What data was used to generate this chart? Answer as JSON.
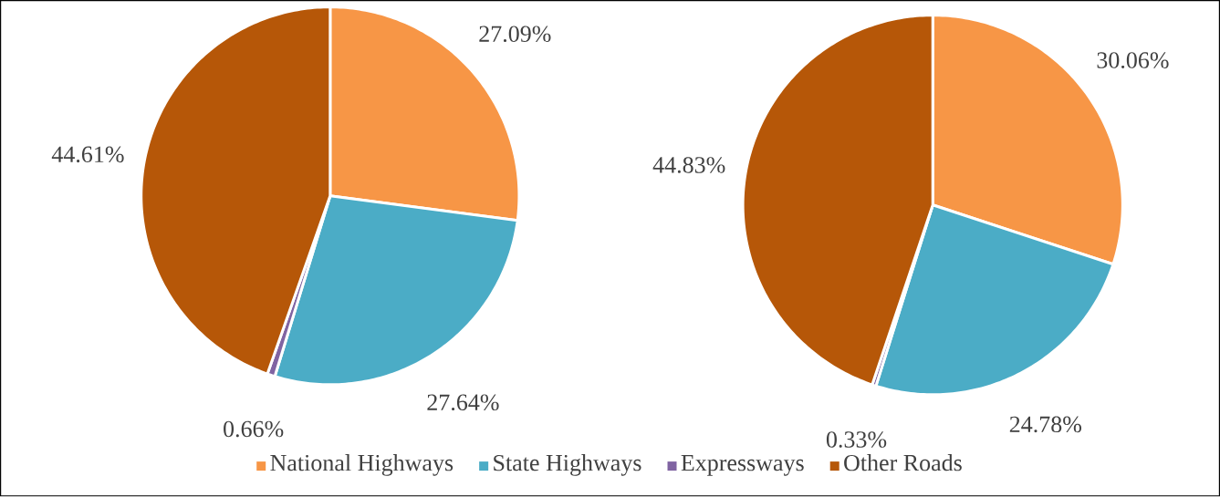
{
  "chart_data": [
    {
      "type": "pie",
      "categories": [
        "National Highways",
        "State Highways",
        "Expressways",
        "Other Roads"
      ],
      "values": [
        27.09,
        27.64,
        0.66,
        44.61
      ],
      "colors": [
        "#f79646",
        "#4bacc6",
        "#8064a2",
        "#b65708"
      ],
      "value_labels": [
        "27.09%",
        "27.64%",
        "0.66%",
        "44.61%"
      ],
      "legend": "bottom"
    },
    {
      "type": "pie",
      "values": [
        30.06,
        24.78,
        0.33,
        44.83
      ],
      "colors": [
        "#f79646",
        "#4bacc6",
        "#8064a2",
        "#b65708"
      ],
      "value_labels": [
        "30.06%",
        "24.78%",
        "0.33%",
        "44.83%"
      ]
    }
  ]
}
